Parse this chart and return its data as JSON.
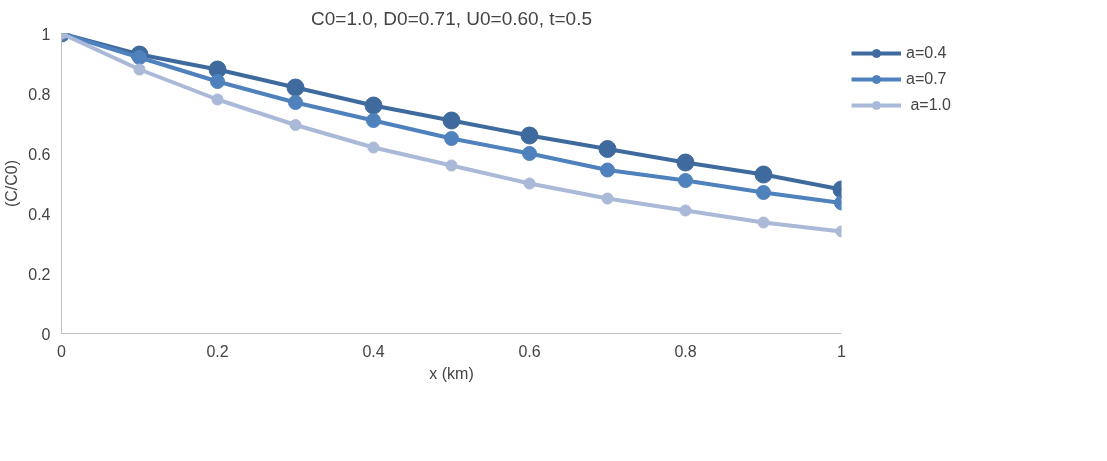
{
  "chart_data": {
    "type": "line",
    "title": "C0=1.0, D0=0.71, U0=0.60, t=0.5",
    "xlabel": "x (km)",
    "ylabel": "(C/C0)",
    "x": [
      0,
      0.1,
      0.2,
      0.3,
      0.4,
      0.5,
      0.6,
      0.7,
      0.8,
      0.9,
      1
    ],
    "series": [
      {
        "name": "a=0.4",
        "color": "#3f6a9e",
        "values": [
          1.0,
          0.93,
          0.88,
          0.82,
          0.76,
          0.71,
          0.66,
          0.615,
          0.57,
          0.53,
          0.48
        ]
      },
      {
        "name": "a=0.7",
        "color": "#4f81bd",
        "values": [
          1.0,
          0.92,
          0.84,
          0.77,
          0.71,
          0.65,
          0.6,
          0.545,
          0.51,
          0.47,
          0.435
        ]
      },
      {
        "name": " a=1.0",
        "color": "#aab9d7",
        "values": [
          1.0,
          0.88,
          0.78,
          0.695,
          0.62,
          0.56,
          0.5,
          0.45,
          0.41,
          0.37,
          0.34
        ]
      }
    ],
    "xlim": [
      0,
      1
    ],
    "xticks": [
      0,
      0.2,
      0.4,
      0.6,
      0.8,
      1
    ],
    "ylim": [
      0,
      1
    ],
    "yticks": [
      0,
      0.2,
      0.4,
      0.6,
      0.8,
      1
    ],
    "grid": false,
    "legend": "right",
    "marker": "circle",
    "line_style": "solid"
  }
}
